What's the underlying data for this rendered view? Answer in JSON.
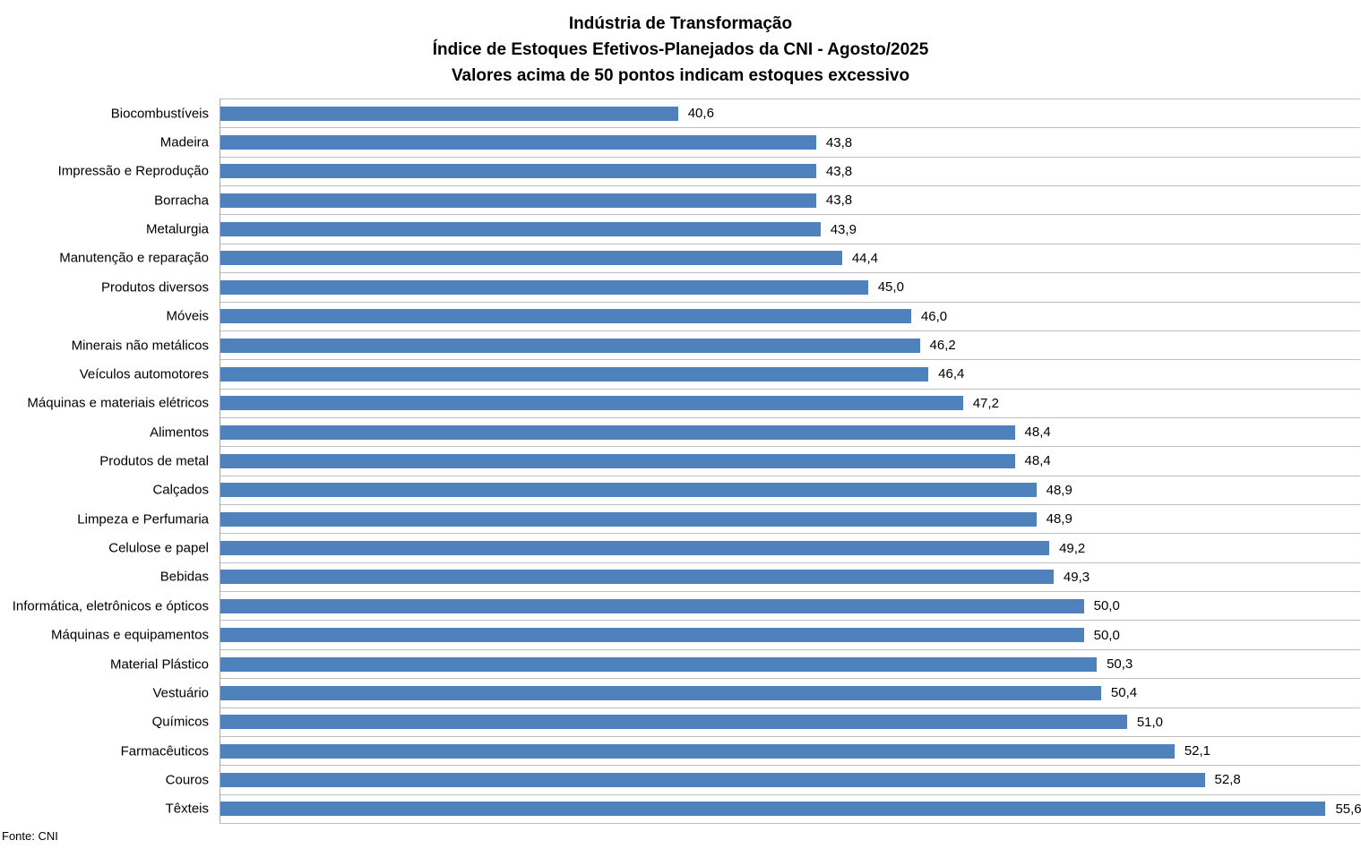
{
  "title": {
    "line1": "Indústria de Transformação",
    "line2": "Índice de Estoques Efetivos-Planejados da CNI - Agosto/2025",
    "line3": "Valores acima de 50 pontos indicam estoques excessivo"
  },
  "footer": {
    "source_label": "Fonte: CNI"
  },
  "colors": {
    "bar": "#4F81BD",
    "row_grid": "#BFBFBF",
    "axis_line": "#A6A6A6",
    "text": "#000000",
    "background": "#FFFFFF"
  },
  "chart_data": {
    "type": "bar",
    "orientation": "horizontal",
    "title": "Indústria de Transformação",
    "subtitle": "Índice de Estoques Efetivos-Planejados da CNI - Agosto/2025",
    "note": "Valores acima de 50 pontos indicam estoques excessivo",
    "categories": [
      "Biocombustíveis",
      "Madeira",
      "Impressão e Reprodução",
      "Borracha",
      "Metalurgia",
      "Manutenção e reparação",
      "Produtos diversos",
      "Móveis",
      "Minerais não metálicos",
      "Veículos automotores",
      "Máquinas e materiais elétricos",
      "Alimentos",
      "Produtos de metal",
      "Calçados",
      "Limpeza e Perfumaria",
      "Celulose e papel",
      "Bebidas",
      "Informática, eletrônicos e ópticos",
      "Máquinas e equipamentos",
      "Material Plástico",
      "Vestuário",
      "Químicos",
      "Farmacêuticos",
      "Couros",
      "Têxteis"
    ],
    "values": [
      40.6,
      43.8,
      43.8,
      43.8,
      43.9,
      44.4,
      45.0,
      46.0,
      46.2,
      46.4,
      47.2,
      48.4,
      48.4,
      48.9,
      48.9,
      49.2,
      49.3,
      50.0,
      50.0,
      50.3,
      50.4,
      51.0,
      52.1,
      52.8,
      55.6
    ],
    "value_labels": [
      "40,6",
      "43,8",
      "43,8",
      "43,8",
      "43,9",
      "44,4",
      "45,0",
      "46,0",
      "46,2",
      "46,4",
      "47,2",
      "48,4",
      "48,4",
      "48,9",
      "48,9",
      "49,2",
      "49,3",
      "50,0",
      "50,0",
      "50,3",
      "50,4",
      "51,0",
      "52,1",
      "52,8",
      "55,6"
    ],
    "xlim": [
      30,
      56.4
    ],
    "xlabel": "",
    "ylabel": "",
    "grid": "category-row-separators",
    "legend": "none",
    "data_labels": "outside-end",
    "source": "CNI"
  }
}
